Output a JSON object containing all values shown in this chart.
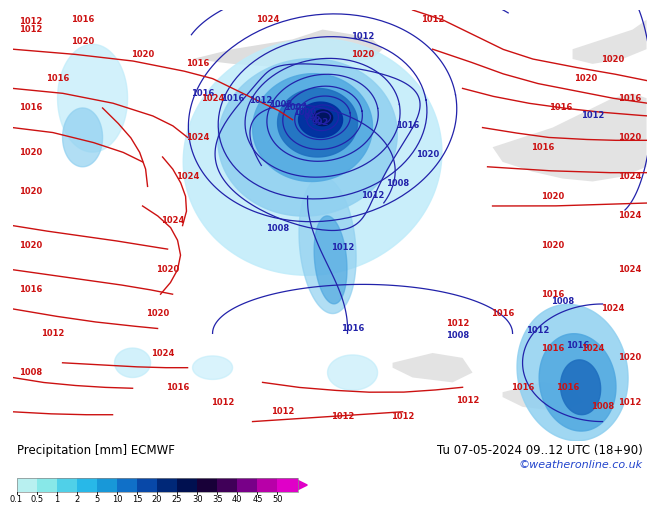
{
  "title_left": "Precipitation [mm] ECMWF",
  "title_right": "Tu 07-05-2024 09..12 UTC (18+90)",
  "credit": "©weatheronline.co.uk",
  "colorbar_colors": [
    "#b8f0f0",
    "#88e8e8",
    "#50d0e8",
    "#28b8e8",
    "#1898d8",
    "#1070c8",
    "#0848a8",
    "#002878",
    "#001050",
    "#180038",
    "#400058",
    "#780088",
    "#b800a8",
    "#e000c8"
  ],
  "colorbar_labels": [
    "0.1",
    "0.5",
    "1",
    "2",
    "5",
    "10",
    "15",
    "20",
    "25",
    "30",
    "35",
    "40",
    "45",
    "50"
  ],
  "bg_color": "#ffffff",
  "land_green": "#b8e890",
  "land_gray": "#c8c8c8",
  "sea_color": "#e8f4ff",
  "precip_light": "#a0e0f8",
  "precip_mid": "#60b0e8",
  "precip_dark": "#2060b0",
  "precip_darkest": "#001848",
  "credit_color": "#2244cc"
}
